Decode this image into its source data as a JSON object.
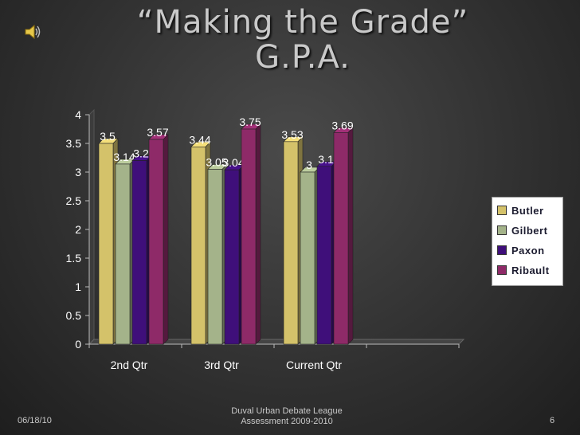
{
  "slide": {
    "title_line1": "“Making the Grade”",
    "title_line2": "G.P.A.",
    "date": "06/18/10",
    "footer_line1": "Duval Urban Debate League",
    "footer_line2": "Assessment 2009-2010",
    "page_number": "6",
    "speaker_icon": "speaker-icon"
  },
  "chart_data": {
    "type": "bar",
    "categories": [
      "2nd Qtr",
      "3rd Qtr",
      "Current Qtr",
      ""
    ],
    "series": [
      {
        "name": "Butler",
        "color": "#d4c26a",
        "values": [
          3.5,
          3.44,
          3.53,
          null
        ],
        "labels": [
          "3.5",
          "3.44",
          "3.53",
          ""
        ]
      },
      {
        "name": "Gilbert",
        "color": "#a4b38a",
        "values": [
          3.14,
          3.05,
          3,
          null
        ],
        "labels": [
          "3.14",
          "3.05",
          "3",
          ""
        ]
      },
      {
        "name": "Paxon",
        "color": "#3f0f7a",
        "values": [
          3.2,
          3.04,
          3.1,
          null
        ],
        "labels": [
          "3.2",
          "3.04",
          "3.1",
          ""
        ]
      },
      {
        "name": "Ribault",
        "color": "#8e2a68",
        "values": [
          3.57,
          3.75,
          3.69,
          null
        ],
        "labels": [
          "3.57",
          "3.75",
          "3.69",
          ""
        ]
      }
    ],
    "yticks": [
      "0",
      "0.5",
      "1",
      "1.5",
      "2",
      "2.5",
      "3",
      "3.5",
      "4"
    ],
    "ylim": [
      0,
      4
    ],
    "grid": false,
    "legend": "right"
  }
}
